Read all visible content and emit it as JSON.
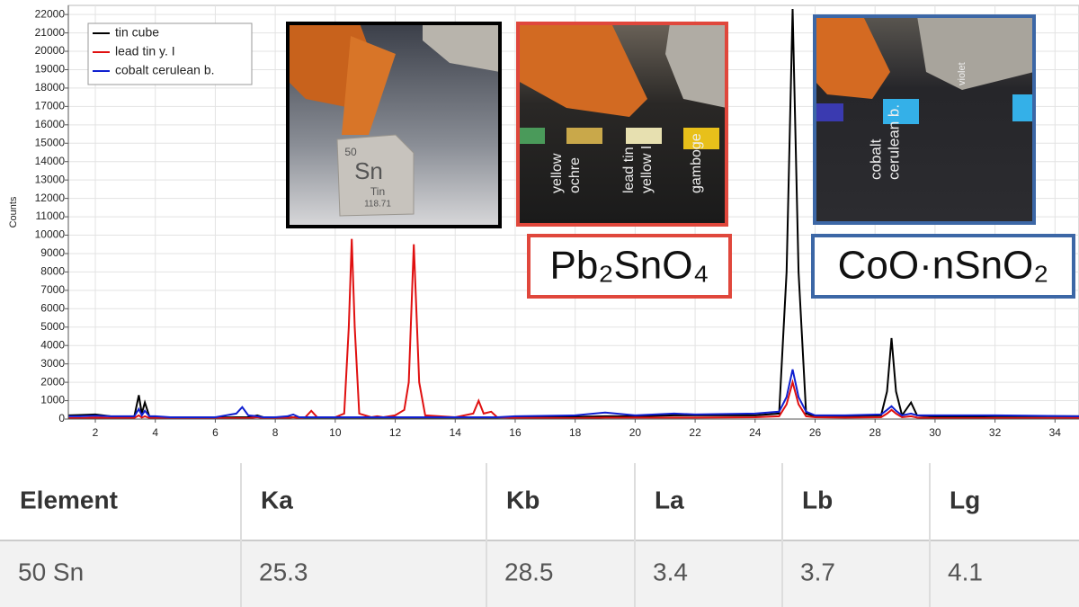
{
  "chart_data": {
    "type": "line",
    "y_label": "Counts",
    "x": [
      1.1,
      1.5,
      2,
      2.5,
      3,
      3.3,
      3.45,
      3.55,
      3.65,
      3.8,
      4,
      4.5,
      5,
      6,
      6.7,
      6.9,
      7.1,
      7.4,
      7.6,
      8,
      8.4,
      8.6,
      8.8,
      9,
      9.2,
      9.4,
      10,
      10.3,
      10.45,
      10.55,
      10.65,
      10.8,
      11.2,
      11.4,
      11.6,
      12,
      12.3,
      12.45,
      12.62,
      12.8,
      13,
      14,
      14.6,
      14.78,
      14.95,
      15.2,
      15.4,
      16,
      18,
      19,
      20,
      21.3,
      22,
      24,
      24.8,
      25.05,
      25.25,
      25.45,
      25.7,
      26,
      27,
      28.2,
      28.4,
      28.55,
      28.7,
      28.9,
      29.2,
      29.4,
      30,
      32,
      34.8
    ],
    "series": [
      {
        "name": "tin cube",
        "color": "#000000",
        "values": [
          200,
          220,
          250,
          150,
          100,
          150,
          1300,
          300,
          900,
          150,
          100,
          80,
          80,
          80,
          100,
          100,
          100,
          200,
          100,
          80,
          80,
          100,
          80,
          80,
          80,
          80,
          80,
          80,
          80,
          80,
          80,
          80,
          80,
          80,
          80,
          80,
          80,
          80,
          80,
          80,
          80,
          80,
          80,
          80,
          80,
          80,
          80,
          100,
          120,
          150,
          150,
          200,
          200,
          200,
          300,
          8000,
          22300,
          8000,
          300,
          150,
          150,
          200,
          1500,
          4400,
          1500,
          200,
          900,
          200,
          120,
          150,
          150
        ]
      },
      {
        "name": "lead tin y. I",
        "color": "#e01010",
        "values": [
          50,
          50,
          80,
          60,
          60,
          60,
          200,
          80,
          150,
          60,
          50,
          50,
          50,
          50,
          50,
          50,
          50,
          100,
          50,
          50,
          50,
          100,
          50,
          100,
          450,
          100,
          100,
          300,
          5000,
          9800,
          5000,
          300,
          100,
          150,
          100,
          200,
          500,
          2000,
          9500,
          2000,
          200,
          100,
          300,
          1000,
          300,
          400,
          100,
          60,
          50,
          80,
          80,
          80,
          80,
          100,
          150,
          800,
          2000,
          800,
          150,
          100,
          80,
          100,
          300,
          500,
          300,
          100,
          150,
          80,
          50,
          50,
          50
        ]
      },
      {
        "name": "cobalt cerulean b.",
        "color": "#1020d0",
        "values": [
          150,
          150,
          180,
          150,
          150,
          150,
          550,
          200,
          450,
          150,
          150,
          100,
          100,
          100,
          300,
          650,
          200,
          150,
          100,
          100,
          150,
          250,
          100,
          100,
          100,
          100,
          100,
          100,
          100,
          100,
          100,
          100,
          100,
          100,
          100,
          100,
          100,
          100,
          100,
          100,
          100,
          100,
          100,
          100,
          100,
          100,
          100,
          150,
          200,
          350,
          200,
          300,
          250,
          300,
          400,
          1200,
          2700,
          1200,
          400,
          200,
          200,
          250,
          500,
          700,
          450,
          200,
          300,
          200,
          200,
          200,
          150
        ]
      }
    ],
    "xlim": [
      1.1,
      34.8
    ],
    "ylim": [
      0,
      22300
    ],
    "xticks": [
      2,
      4,
      6,
      8,
      10,
      12,
      14,
      16,
      18,
      20,
      22,
      24,
      26,
      28,
      30,
      32,
      34
    ],
    "yticks": [
      0,
      1000,
      2000,
      3000,
      4000,
      5000,
      6000,
      7000,
      8000,
      9000,
      10000,
      11000,
      12000,
      13000,
      14000,
      15000,
      16000,
      17000,
      18000,
      19000,
      20000,
      21000,
      22000
    ],
    "grid": true,
    "legend": "upper left"
  },
  "insets": [
    {
      "border": "#000000",
      "labels": [
        "50",
        "Sn",
        "Tin",
        "118.71"
      ]
    },
    {
      "border": "#e0473c",
      "labels": [
        "yellow",
        "ochre",
        "lead tin",
        "yellow I",
        "gamboge"
      ]
    },
    {
      "border": "#3c67a6",
      "labels": [
        "cobalt",
        "cerulean b.",
        "violet"
      ]
    }
  ],
  "formulas": [
    {
      "text": "Pb₂SnO₄",
      "border": "#e0473c"
    },
    {
      "text": "CoO·nSnO₂",
      "border": "#3c67a6"
    }
  ],
  "table": {
    "header": [
      "Element",
      "Ka",
      "Kb",
      "La",
      "Lb",
      "Lg"
    ],
    "rows": [
      [
        "50 Sn",
        "25.3",
        "28.5",
        "3.4",
        "3.7",
        "4.1"
      ]
    ]
  }
}
